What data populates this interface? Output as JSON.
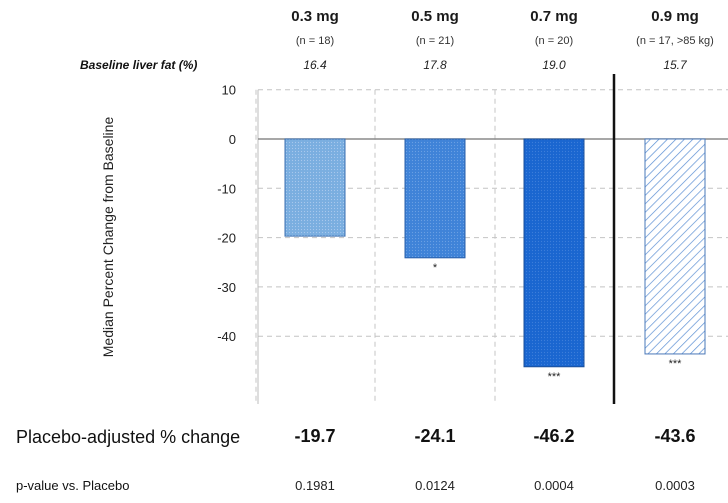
{
  "chart_data": {
    "type": "bar",
    "categories": [
      "0.3 mg",
      "0.5 mg",
      "0.7 mg",
      "0.9 mg"
    ],
    "values": [
      -19.7,
      -24.1,
      -46.2,
      -43.6
    ],
    "subgroups": [
      "(n = 18)",
      "(n = 21)",
      "(n = 20)",
      "(n = 17, >85 kg)"
    ],
    "significance": [
      "",
      "*",
      "***",
      "***"
    ],
    "ylabel": "Median Percent Change from Baseline",
    "xlabel": "",
    "ylim": [
      -53,
      10
    ],
    "yticks": [
      10,
      0,
      -10,
      -20,
      -30,
      -40
    ],
    "grid": true,
    "bar_colors": [
      "#7aaee0",
      "#3f83d8",
      "#1a66d0",
      "#ffffff"
    ],
    "bar_styles": [
      "dotted",
      "dotted",
      "dotted",
      "hatched"
    ],
    "separator_after_category": 2
  },
  "baseline": {
    "label": "Baseline liver fat (%)",
    "values": [
      "16.4",
      "17.8",
      "19.0",
      "15.7"
    ]
  },
  "footer": {
    "placebo_adjusted_label": "Placebo-adjusted % change",
    "placebo_adjusted_values": [
      "-19.7",
      "-24.1",
      "-46.2",
      "-43.6"
    ],
    "pvalue_label": "p-value vs. Placebo",
    "pvalues": [
      "0.1981",
      "0.0124",
      "0.0004",
      "0.0003"
    ]
  }
}
